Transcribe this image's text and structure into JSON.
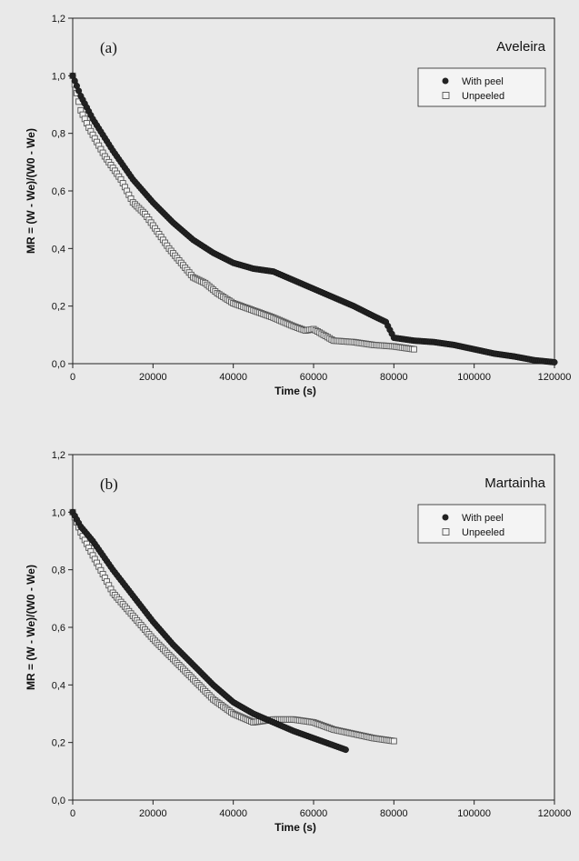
{
  "chart_data": [
    {
      "type": "scatter",
      "panel_label": "(a)",
      "cultivar": "Aveleira",
      "xlabel": "Time (s)",
      "ylabel": "MR = (W - We)/(W0 - We)",
      "xlim": [
        0,
        120000
      ],
      "ylim": [
        0,
        1.2
      ],
      "xticks": [
        0,
        20000,
        40000,
        60000,
        80000,
        100000,
        120000
      ],
      "yticks": [
        "0,0",
        "0,2",
        "0,4",
        "0,6",
        "0,8",
        "1,0",
        "1,2"
      ],
      "legend_position": "top-right",
      "grid": false,
      "series": [
        {
          "name": "With peel",
          "marker": "filled-circle",
          "color": "#222222",
          "x": [
            0,
            2000,
            5000,
            10000,
            15000,
            20000,
            25000,
            30000,
            35000,
            40000,
            45000,
            50000,
            55000,
            60000,
            65000,
            70000,
            75000,
            78000,
            80000,
            85000,
            90000,
            95000,
            100000,
            105000,
            110000,
            115000,
            120000
          ],
          "y": [
            1.0,
            0.93,
            0.85,
            0.74,
            0.64,
            0.56,
            0.49,
            0.43,
            0.385,
            0.35,
            0.33,
            0.32,
            0.29,
            0.26,
            0.23,
            0.2,
            0.165,
            0.145,
            0.09,
            0.08,
            0.075,
            0.065,
            0.05,
            0.035,
            0.025,
            0.012,
            0.005
          ]
        },
        {
          "name": "Unpeeled",
          "marker": "open-square",
          "color": "#555555",
          "x": [
            0,
            2000,
            4000,
            6000,
            8000,
            10000,
            12000,
            15000,
            18000,
            21000,
            24000,
            27000,
            30000,
            33000,
            36000,
            40000,
            45000,
            50000,
            55000,
            58000,
            60000,
            65000,
            70000,
            75000,
            80000,
            85000
          ],
          "y": [
            1.0,
            0.88,
            0.82,
            0.77,
            0.72,
            0.68,
            0.64,
            0.56,
            0.52,
            0.46,
            0.4,
            0.35,
            0.3,
            0.28,
            0.245,
            0.21,
            0.185,
            0.16,
            0.13,
            0.115,
            0.12,
            0.08,
            0.075,
            0.065,
            0.06,
            0.05
          ]
        }
      ]
    },
    {
      "type": "scatter",
      "panel_label": "(b)",
      "cultivar": "Martainha",
      "xlabel": "Time (s)",
      "ylabel": "MR = (W - We)/(W0 - We)",
      "xlim": [
        0,
        120000
      ],
      "ylim": [
        0,
        1.2
      ],
      "xticks": [
        0,
        20000,
        40000,
        60000,
        80000,
        100000,
        120000
      ],
      "yticks": [
        "0,0",
        "0,2",
        "0,4",
        "0,6",
        "0,8",
        "1,0",
        "1,2"
      ],
      "legend_position": "top-right",
      "grid": false,
      "series": [
        {
          "name": "With peel",
          "marker": "filled-circle",
          "color": "#222222",
          "x": [
            0,
            2000,
            5000,
            10000,
            15000,
            20000,
            25000,
            30000,
            35000,
            40000,
            45000,
            50000,
            55000,
            60000,
            65000,
            68000
          ],
          "y": [
            1.0,
            0.95,
            0.9,
            0.8,
            0.71,
            0.62,
            0.54,
            0.47,
            0.4,
            0.34,
            0.3,
            0.27,
            0.24,
            0.215,
            0.19,
            0.175
          ]
        },
        {
          "name": "Unpeeled",
          "marker": "open-square",
          "color": "#555555",
          "x": [
            0,
            2000,
            5000,
            10000,
            15000,
            20000,
            25000,
            30000,
            35000,
            40000,
            45000,
            50000,
            55000,
            60000,
            65000,
            70000,
            75000,
            80000
          ],
          "y": [
            1.0,
            0.93,
            0.85,
            0.72,
            0.64,
            0.56,
            0.49,
            0.42,
            0.35,
            0.3,
            0.27,
            0.28,
            0.28,
            0.27,
            0.245,
            0.23,
            0.215,
            0.205
          ]
        }
      ]
    }
  ]
}
